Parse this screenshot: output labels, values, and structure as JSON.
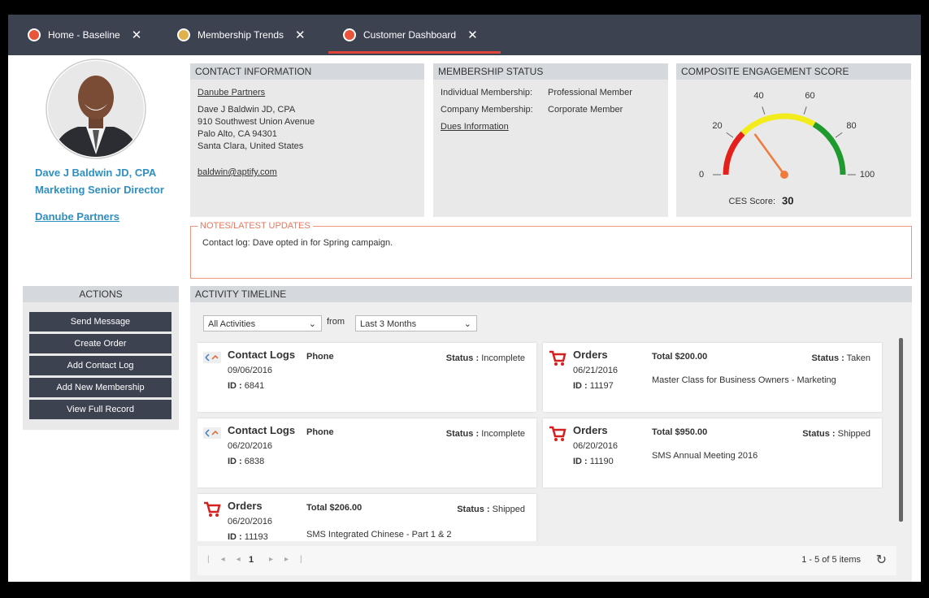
{
  "tabs": [
    "Home - Baseline",
    "Membership Trends",
    "Customer Dashboard"
  ],
  "profile": {
    "name": "Dave J Baldwin JD, CPA",
    "title": "Marketing Senior Director",
    "company": "Danube Partners"
  },
  "actions": {
    "title": "ACTIONS",
    "buttons": [
      "Send Message",
      "Create Order",
      "Add Contact Log",
      "Add New Membership",
      "View Full Record"
    ]
  },
  "contact": {
    "title": "CONTACT INFORMATION",
    "company": "Danube Partners",
    "lines": [
      "Dave J Baldwin JD, CPA",
      "910 Southwest Union Avenue",
      "Palo Alto, CA 94301",
      "Santa Clara, United States"
    ],
    "email": "baldwin@aptify.com"
  },
  "membership": {
    "title": "MEMBERSHIP STATUS",
    "rows": [
      [
        "Individual Membership:",
        "Professional Member"
      ],
      [
        "Company Membership:",
        "Corporate Member"
      ]
    ],
    "link": "Dues Information"
  },
  "engagement": {
    "title": "COMPOSITE ENGAGEMENT SCORE",
    "gauge": {
      "min": 0,
      "max": 100,
      "ticks": [
        0,
        20,
        40,
        60,
        80,
        100
      ],
      "bands": [
        {
          "from": 0,
          "to": 25,
          "color": "#e3201b"
        },
        {
          "from": 25,
          "to": 67,
          "color": "#f2ec1c"
        },
        {
          "from": 67,
          "to": 100,
          "color": "#1f9a2e"
        }
      ],
      "needle_color": "#f07a3c",
      "score_label": "CES Score:",
      "score": 30
    }
  },
  "notes": {
    "title": "NOTES/LATEST UPDATES",
    "text": "Contact log: Dave opted in for Spring campaign."
  },
  "timeline": {
    "title": "ACTIVITY TIMELINE",
    "filter": "All Activities",
    "from": "from",
    "range": "Last 3 Months",
    "items": [
      {
        "type": "Contact Logs",
        "date": "09/06/2016",
        "id_label": "ID :",
        "id": 6841,
        "channel": "Phone",
        "status_label": "Status :",
        "status": "Incomplete"
      },
      {
        "type": "Orders",
        "date": "06/21/2016",
        "id_label": "ID :",
        "id": 11197,
        "total": "Total $200.00",
        "description": "Master Class for Business Owners - Marketing",
        "status_label": "Status :",
        "status": "Taken"
      },
      {
        "type": "Contact Logs",
        "date": "06/20/2016",
        "id_label": "ID :",
        "id": 6838,
        "channel": "Phone",
        "status_label": "Status :",
        "status": "Incomplete"
      },
      {
        "type": "Orders",
        "date": "06/20/2016",
        "id_label": "ID :",
        "id": 11190,
        "total": "Total $950.00",
        "description": "SMS Annual Meeting 2016",
        "status_label": "Status :",
        "status": "Shipped"
      },
      {
        "type": "Orders",
        "date": "06/20/2016",
        "id_label": "ID :",
        "id": 11193,
        "total": "Total $206.00",
        "description": "SMS Integrated Chinese - Part 1 & 2",
        "status_label": "Status :",
        "status": "Shipped"
      }
    ],
    "pager": {
      "page": 1,
      "summary": "1 - 5 of 5 items"
    }
  }
}
